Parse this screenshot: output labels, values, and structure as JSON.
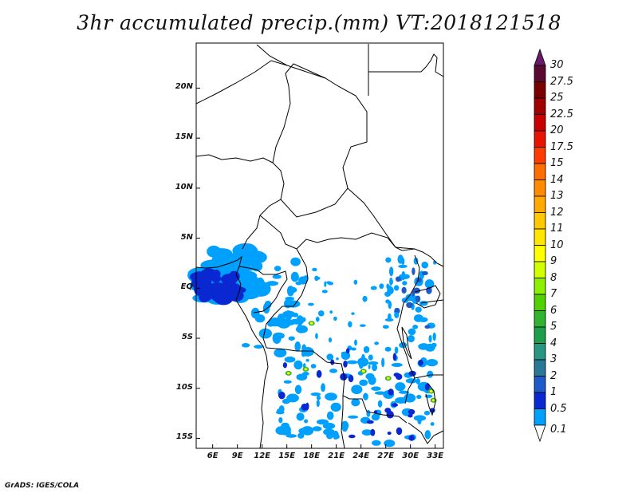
{
  "title": "3hr accumulated precip.(mm) VT:2018121518",
  "credit": "GrADS: IGES/COLA",
  "map": {
    "lat_labels": [
      "20N",
      "15N",
      "10N",
      "5N",
      "EQ",
      "5S",
      "10S",
      "15S"
    ],
    "lat_values": [
      20,
      15,
      10,
      5,
      0,
      -5,
      -10,
      -15
    ],
    "lon_labels": [
      "6E",
      "9E",
      "12E",
      "15E",
      "18E",
      "21E",
      "24E",
      "27E",
      "30E",
      "33E"
    ],
    "lon_values": [
      6,
      9,
      12,
      15,
      18,
      21,
      24,
      27,
      30,
      33
    ],
    "lon_range": [
      4,
      34
    ],
    "lat_range": [
      -16,
      24.5
    ]
  },
  "colorbar": {
    "levels": [
      "30",
      "27.5",
      "25",
      "22.5",
      "20",
      "17.5",
      "15",
      "14",
      "13",
      "12",
      "11",
      "10",
      "9",
      "8",
      "7",
      "6",
      "5",
      "4",
      "3",
      "2",
      "1",
      "0.5",
      "0.1"
    ],
    "colors": [
      "#5a0a32",
      "#7a0000",
      "#a00000",
      "#c80000",
      "#e61400",
      "#ff3c00",
      "#ff6e00",
      "#ff8c00",
      "#ffaa00",
      "#ffc800",
      "#ffe600",
      "#ffff00",
      "#d2ff00",
      "#8cf000",
      "#50d200",
      "#32b432",
      "#1e9e4b",
      "#289682",
      "#287896",
      "#1e5ac8",
      "#0a28d2",
      "#00a0ff",
      "#ffffff"
    ],
    "top_arrow_color": "#6a1a6a"
  }
}
